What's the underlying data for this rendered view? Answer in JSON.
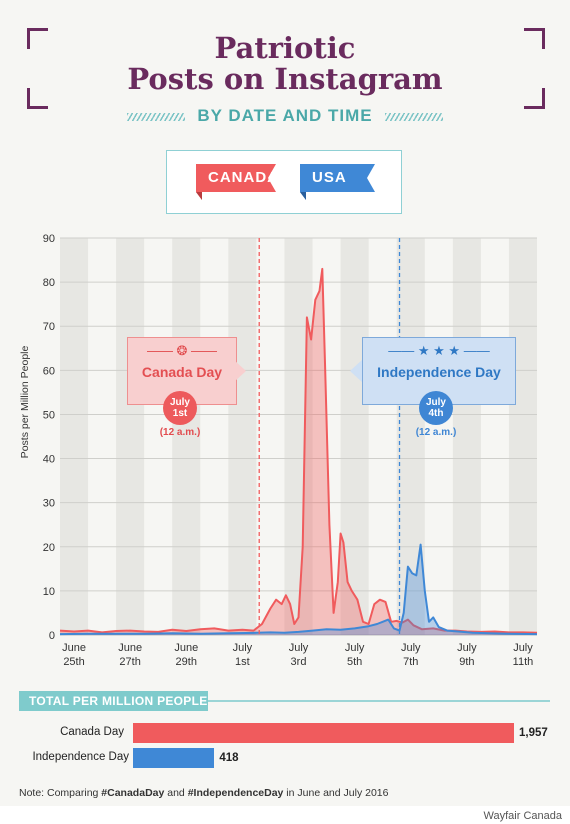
{
  "header": {
    "title_line1": "Patriotic",
    "title_line2": "Posts on Instagram",
    "subtitle": "BY DATE AND TIME"
  },
  "legend": {
    "canada": "CANADA",
    "usa": "USA"
  },
  "colors": {
    "canada": "#f05b5d",
    "usa": "#3f88d6",
    "title": "#6a2b5e",
    "accent": "#7fcbcc"
  },
  "annotations": {
    "canada": {
      "name": "Canada Day",
      "date_line1": "July",
      "date_line2": "1st",
      "time": "(12 a.m.)"
    },
    "usa": {
      "name": "Independence Day",
      "date_line1": "July",
      "date_line2": "4th",
      "time": "(12 a.m.)"
    }
  },
  "chart_data": {
    "type": "area",
    "ylabel": "Posts per Million People",
    "ylim": [
      0,
      90
    ],
    "yticks": [
      0,
      10,
      20,
      30,
      40,
      50,
      60,
      70,
      80,
      90
    ],
    "xticks": [
      {
        "line1": "June",
        "line2": "25th"
      },
      {
        "line1": "June",
        "line2": "27th"
      },
      {
        "line1": "June",
        "line2": "29th"
      },
      {
        "line1": "July",
        "line2": "1st"
      },
      {
        "line1": "July",
        "line2": "3rd"
      },
      {
        "line1": "July",
        "line2": "5th"
      },
      {
        "line1": "July",
        "line2": "7th"
      },
      {
        "line1": "July",
        "line2": "9th"
      },
      {
        "line1": "July",
        "line2": "11th"
      }
    ],
    "x_day_range": [
      -0.5,
      16.5
    ],
    "series": [
      {
        "name": "Canada",
        "points": [
          [
            -0.5,
            1
          ],
          [
            0,
            0.8
          ],
          [
            0.5,
            1
          ],
          [
            1,
            0.6
          ],
          [
            1.5,
            0.9
          ],
          [
            2,
            1
          ],
          [
            2.5,
            0.8
          ],
          [
            3,
            0.7
          ],
          [
            3.5,
            1.2
          ],
          [
            4,
            0.9
          ],
          [
            4.5,
            1.3
          ],
          [
            5,
            1.5
          ],
          [
            5.5,
            1
          ],
          [
            6,
            1.2
          ],
          [
            6.4,
            1
          ],
          [
            6.7,
            2.5
          ],
          [
            7,
            6
          ],
          [
            7.2,
            8
          ],
          [
            7.4,
            7
          ],
          [
            7.55,
            9
          ],
          [
            7.7,
            7
          ],
          [
            7.85,
            2.5
          ],
          [
            8,
            4
          ],
          [
            8.15,
            20
          ],
          [
            8.3,
            72
          ],
          [
            8.45,
            67
          ],
          [
            8.6,
            76
          ],
          [
            8.75,
            78
          ],
          [
            8.85,
            83
          ],
          [
            8.95,
            60
          ],
          [
            9.1,
            25
          ],
          [
            9.25,
            5
          ],
          [
            9.4,
            12
          ],
          [
            9.5,
            23
          ],
          [
            9.6,
            21
          ],
          [
            9.75,
            12
          ],
          [
            9.9,
            10
          ],
          [
            10.1,
            8
          ],
          [
            10.3,
            3
          ],
          [
            10.5,
            2.5
          ],
          [
            10.7,
            7
          ],
          [
            10.9,
            8
          ],
          [
            11.1,
            7.5
          ],
          [
            11.3,
            3
          ],
          [
            11.5,
            3.2
          ],
          [
            11.7,
            2.8
          ],
          [
            11.9,
            3.5
          ],
          [
            12.1,
            2.2
          ],
          [
            12.4,
            1.3
          ],
          [
            12.8,
            1.5
          ],
          [
            13.2,
            1
          ],
          [
            13.6,
            1
          ],
          [
            14,
            0.8
          ],
          [
            14.5,
            0.7
          ],
          [
            15,
            0.8
          ],
          [
            15.5,
            0.6
          ],
          [
            16,
            0.6
          ],
          [
            16.5,
            0.5
          ]
        ]
      },
      {
        "name": "USA",
        "points": [
          [
            -0.5,
            0.2
          ],
          [
            0.5,
            0.3
          ],
          [
            1.5,
            0.3
          ],
          [
            2.5,
            0.3
          ],
          [
            3.5,
            0.4
          ],
          [
            4.5,
            0.3
          ],
          [
            5.5,
            0.4
          ],
          [
            6.5,
            0.5
          ],
          [
            7,
            0.6
          ],
          [
            7.5,
            0.5
          ],
          [
            8,
            0.7
          ],
          [
            8.5,
            1
          ],
          [
            9,
            1.3
          ],
          [
            9.5,
            1.2
          ],
          [
            10,
            1.5
          ],
          [
            10.5,
            2
          ],
          [
            10.8,
            2.5
          ],
          [
            11,
            3
          ],
          [
            11.2,
            3.5
          ],
          [
            11.4,
            1.5
          ],
          [
            11.6,
            1
          ],
          [
            11.75,
            5
          ],
          [
            11.9,
            15.5
          ],
          [
            12.05,
            14
          ],
          [
            12.2,
            13.5
          ],
          [
            12.35,
            20.5
          ],
          [
            12.5,
            10
          ],
          [
            12.65,
            3
          ],
          [
            12.8,
            4
          ],
          [
            13,
            1.8
          ],
          [
            13.3,
            1
          ],
          [
            13.7,
            0.8
          ],
          [
            14.2,
            0.5
          ],
          [
            14.8,
            0.4
          ],
          [
            15.5,
            0.3
          ],
          [
            16.5,
            0.2
          ]
        ]
      }
    ],
    "markers": [
      {
        "label": "Canada Day",
        "day": 6.6
      },
      {
        "label": "Independence Day",
        "day": 11.6
      }
    ]
  },
  "totals": {
    "header": "TOTAL PER MILLION PEOPLE",
    "rows": [
      {
        "label": "Canada Day",
        "value": 1957,
        "display": "1,957"
      },
      {
        "label": "Independence Day",
        "value": 418,
        "display": "418"
      }
    ]
  },
  "note": {
    "prefix": "Note: Comparing ",
    "tag1": "#CanadaDay",
    "middle": " and ",
    "tag2": "#IndependenceDay",
    "suffix": " in June and July 2016"
  },
  "source": "Wayfair Canada"
}
